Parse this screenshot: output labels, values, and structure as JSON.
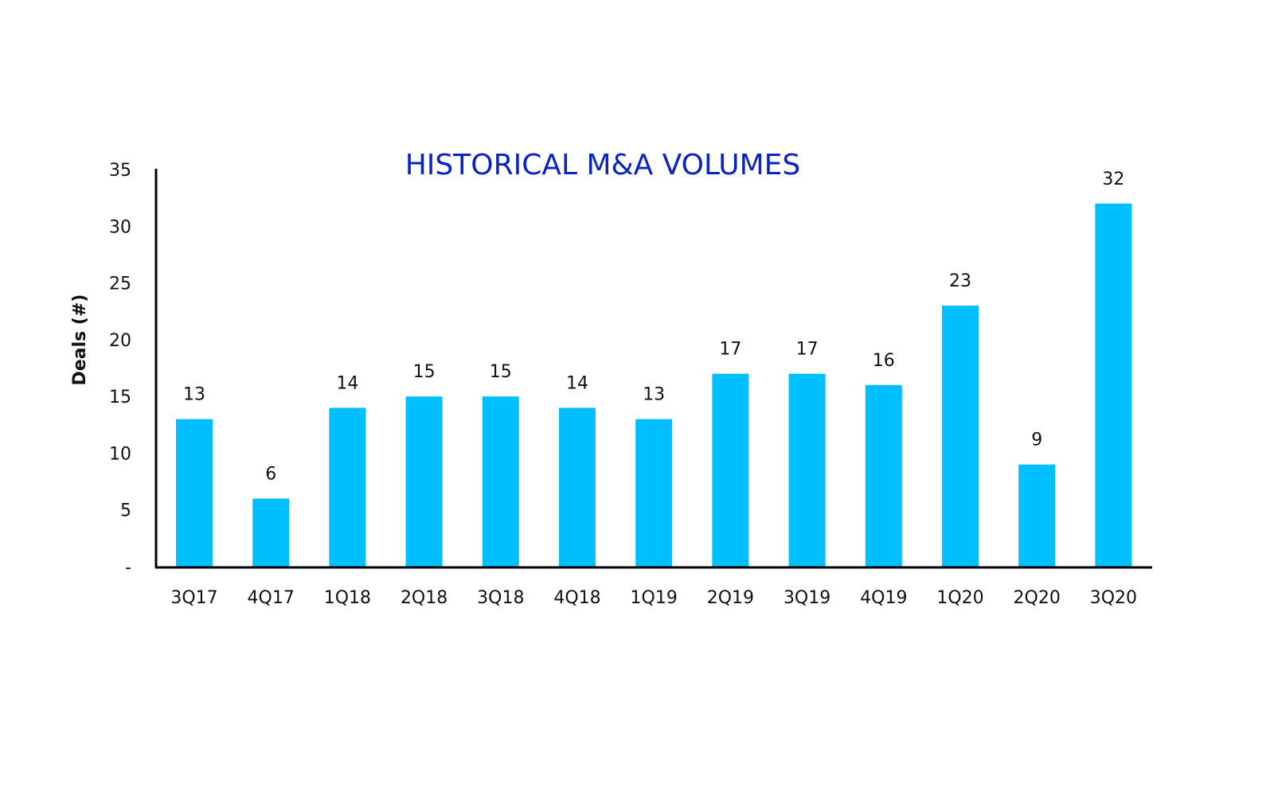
{
  "chart_data": {
    "type": "bar",
    "title": "HISTORICAL M&A VOLUMES",
    "xlabel": "",
    "ylabel": "Deals (#)",
    "categories": [
      "3Q17",
      "4Q17",
      "1Q18",
      "2Q18",
      "3Q18",
      "4Q18",
      "1Q19",
      "2Q19",
      "3Q19",
      "4Q19",
      "1Q20",
      "2Q20",
      "3Q20"
    ],
    "values": [
      13,
      6,
      14,
      15,
      15,
      14,
      13,
      17,
      17,
      16,
      23,
      9,
      32
    ],
    "ylim": [
      0,
      35
    ],
    "yticks": [
      0,
      5,
      10,
      15,
      20,
      25,
      30,
      35
    ],
    "ytick_labels": [
      "-",
      "5",
      "10",
      "15",
      "20",
      "25",
      "30",
      "35"
    ],
    "grid": false,
    "bar_color": "#00BFFF",
    "title_color": "#0A23C4"
  }
}
